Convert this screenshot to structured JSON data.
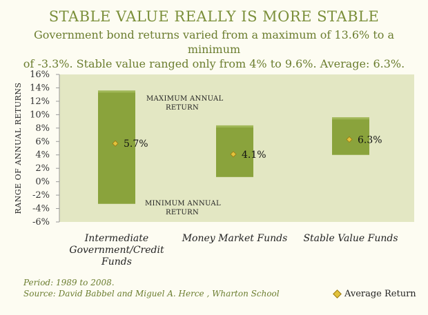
{
  "header": {
    "title": "STABLE VALUE REALLY IS MORE STABLE",
    "subtitle_line1": "Government bond returns varied from a maximum of 13.6% to a minimum",
    "subtitle_line2": "of -3.3%. Stable value ranged only from 4% to 9.6%. Average: 6.3%."
  },
  "footer": {
    "period": "Period: 1989 to 2008.",
    "source": "Source: David Babbel and Miguel A. Herce , Wharton School"
  },
  "legend": {
    "label": "Average Return"
  },
  "annotations": {
    "max_line1": "MAXIMUM ANNUAL",
    "max_line2": "RETURN",
    "min_line1": "MINIMUM ANNUAL",
    "min_line2": "RETURN"
  },
  "colors": {
    "bar": "#8aa33c",
    "bar_light": "#a9bf62",
    "plot_bg": "#e3e7c3",
    "marker": "#e2c23c"
  },
  "chart_data": {
    "type": "floating-bar",
    "ylabel": "RANGE OF ANNUAL RETURNS",
    "ylim": [
      -6,
      16
    ],
    "yticks": [
      16,
      14,
      12,
      10,
      8,
      6,
      4,
      2,
      0,
      -2,
      -4,
      -6
    ],
    "ytick_labels": [
      "16%",
      "14%",
      "12%",
      "10%",
      "8%",
      "6%",
      "4%",
      "2%",
      "0%",
      "-2%",
      "-4%",
      "-6%"
    ],
    "categories": [
      {
        "lines": [
          "Intermediate",
          "Government/Credit",
          "Funds"
        ],
        "min": -3.3,
        "max": 13.6,
        "avg": 5.7,
        "avg_label": "5.7%"
      },
      {
        "lines": [
          "Money Market Funds"
        ],
        "min": 0.7,
        "max": 8.4,
        "avg": 4.1,
        "avg_label": "4.1%"
      },
      {
        "lines": [
          "Stable Value Funds"
        ],
        "min": 4.0,
        "max": 9.6,
        "avg": 6.3,
        "avg_label": "6.3%"
      }
    ],
    "grid": false
  }
}
